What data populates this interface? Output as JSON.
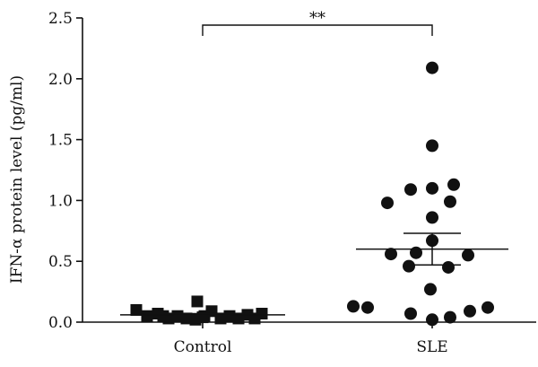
{
  "chart_data": {
    "type": "scatter",
    "ylabel": "IFN-α protein level (pg/ml)",
    "ylim": [
      0,
      2.5
    ],
    "yticks": [
      0.0,
      0.5,
      1.0,
      1.5,
      2.0,
      2.5
    ],
    "ytick_labels": [
      "0.0",
      "0.5",
      "1.0",
      "1.5",
      "2.0",
      "2.5"
    ],
    "categories": [
      "Control",
      "SLE"
    ],
    "significance": "**",
    "series": [
      {
        "category": "Control",
        "marker": "square",
        "values": [
          0.1,
          0.05,
          0.07,
          0.03,
          0.05,
          0.03,
          0.02,
          0.05,
          0.17,
          0.09,
          0.03,
          0.05,
          0.03,
          0.06,
          0.03,
          0.07,
          0.04,
          0.05
        ],
        "mean": 0.06,
        "sem": 0.01
      },
      {
        "category": "SLE",
        "marker": "circle",
        "values": [
          2.09,
          1.45,
          1.13,
          1.1,
          1.09,
          0.98,
          0.99,
          0.86,
          0.67,
          0.56,
          0.57,
          0.55,
          0.46,
          0.45,
          0.27,
          0.13,
          0.12,
          0.07,
          0.02,
          0.04,
          0.09,
          0.12
        ],
        "mean": 0.6,
        "sem": 0.13
      }
    ]
  }
}
